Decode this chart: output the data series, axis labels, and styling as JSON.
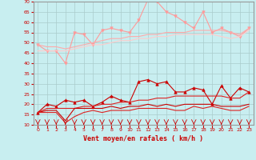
{
  "x": [
    0,
    1,
    2,
    3,
    4,
    5,
    6,
    7,
    8,
    9,
    10,
    11,
    12,
    13,
    14,
    15,
    16,
    17,
    18,
    19,
    20,
    21,
    22,
    23
  ],
  "series": [
    {
      "name": "rafales_max",
      "color": "#ff9999",
      "lw": 0.8,
      "marker": "v",
      "ms": 2.5,
      "y": [
        49,
        46,
        46,
        40,
        55,
        54,
        49,
        56,
        57,
        56,
        55,
        61,
        71,
        70,
        65,
        63,
        60,
        57,
        65,
        55,
        57,
        55,
        53,
        57
      ]
    },
    {
      "name": "rafales_q75",
      "color": "#ffaaaa",
      "lw": 0.8,
      "marker": null,
      "ms": 0,
      "y": [
        49,
        48,
        48,
        47,
        48,
        49,
        50,
        51,
        52,
        52,
        53,
        53,
        54,
        54,
        55,
        55,
        55,
        56,
        56,
        56,
        56,
        55,
        54,
        57
      ]
    },
    {
      "name": "rafales_med",
      "color": "#ffcccc",
      "lw": 0.8,
      "marker": null,
      "ms": 0,
      "y": [
        46,
        46,
        46,
        46,
        47,
        48,
        49,
        49,
        50,
        51,
        51,
        52,
        52,
        53,
        53,
        54,
        54,
        54,
        54,
        54,
        53,
        52,
        53,
        56
      ]
    },
    {
      "name": "moyen_max",
      "color": "#cc0000",
      "lw": 0.8,
      "marker": "^",
      "ms": 2.5,
      "y": [
        16,
        20,
        19,
        22,
        21,
        22,
        19,
        21,
        24,
        22,
        21,
        31,
        32,
        30,
        31,
        26,
        26,
        28,
        27,
        20,
        29,
        23,
        28,
        26
      ]
    },
    {
      "name": "moyen_q75",
      "color": "#dd2222",
      "lw": 0.8,
      "marker": null,
      "ms": 0,
      "y": [
        16,
        18,
        18,
        18,
        18,
        19,
        19,
        20,
        20,
        21,
        21,
        22,
        22,
        23,
        23,
        24,
        24,
        24,
        24,
        24,
        24,
        23,
        23,
        26
      ]
    },
    {
      "name": "moyen_med",
      "color": "#cc0000",
      "lw": 0.8,
      "marker": null,
      "ms": 0,
      "y": [
        16,
        17,
        17,
        12,
        18,
        18,
        18,
        18,
        19,
        18,
        19,
        19,
        20,
        19,
        20,
        19,
        20,
        20,
        20,
        20,
        19,
        19,
        19,
        20
      ]
    },
    {
      "name": "moyen_min",
      "color": "#dd2222",
      "lw": 0.8,
      "marker": null,
      "ms": 0,
      "y": [
        16,
        16,
        16,
        11,
        14,
        16,
        17,
        16,
        17,
        17,
        17,
        18,
        18,
        18,
        18,
        17,
        17,
        19,
        18,
        19,
        18,
        17,
        17,
        19
      ]
    }
  ],
  "xlabel": "Vent moyen/en rafales ( km/h )",
  "xlabel_color": "#cc0000",
  "xlabel_fontsize": 6,
  "ylim": [
    10,
    70
  ],
  "xlim": [
    -0.5,
    23.5
  ],
  "yticks": [
    10,
    15,
    20,
    25,
    30,
    35,
    40,
    45,
    50,
    55,
    60,
    65,
    70
  ],
  "xticks": [
    0,
    1,
    2,
    3,
    4,
    5,
    6,
    7,
    8,
    9,
    10,
    11,
    12,
    13,
    14,
    15,
    16,
    17,
    18,
    19,
    20,
    21,
    22,
    23
  ],
  "bg_color": "#c8eef0",
  "grid_color": "#aacccc",
  "tick_color": "#cc0000",
  "axis_color": "#999999"
}
